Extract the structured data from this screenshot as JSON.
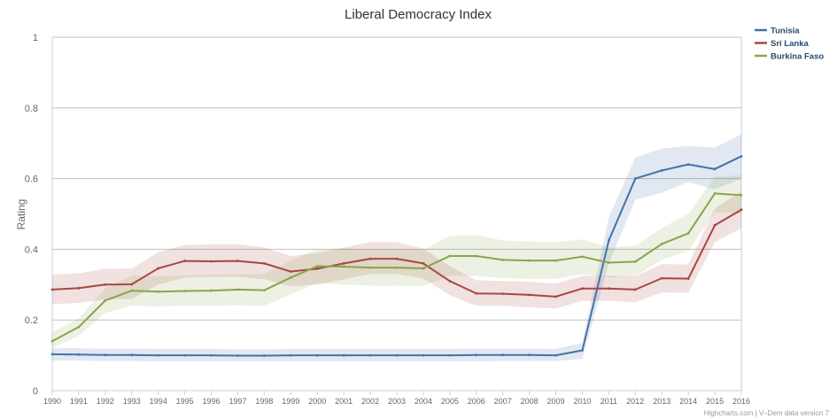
{
  "chart_data": {
    "type": "line",
    "title": "Liberal Democracy Index",
    "xlabel": "",
    "ylabel": "Rating",
    "ylim": [
      0,
      1
    ],
    "yticks": [
      "0",
      "0.2",
      "0.4",
      "0.6",
      "0.8",
      "1"
    ],
    "ytick_values": [
      0,
      0.2,
      0.4,
      0.6,
      0.8,
      1
    ],
    "x": [
      "1990",
      "1991",
      "1992",
      "1993",
      "1994",
      "1995",
      "1996",
      "1997",
      "1998",
      "1999",
      "2000",
      "2001",
      "2002",
      "2003",
      "2004",
      "2005",
      "2006",
      "2007",
      "2008",
      "2009",
      "2010",
      "2011",
      "2012",
      "2013",
      "2014",
      "2015",
      "2016"
    ],
    "grid": true,
    "legend_position": "top-right",
    "series": [
      {
        "name": "Tunisia",
        "color": "#4572a7",
        "values": [
          0.103,
          0.102,
          0.101,
          0.101,
          0.1,
          0.1,
          0.1,
          0.099,
          0.099,
          0.1,
          0.1,
          0.1,
          0.1,
          0.1,
          0.1,
          0.1,
          0.101,
          0.101,
          0.101,
          0.1,
          0.114,
          0.425,
          0.6,
          0.623,
          0.64,
          0.627,
          0.663
        ],
        "low": [
          0.085,
          0.085,
          0.084,
          0.084,
          0.083,
          0.083,
          0.083,
          0.083,
          0.083,
          0.083,
          0.083,
          0.083,
          0.083,
          0.083,
          0.083,
          0.083,
          0.083,
          0.084,
          0.084,
          0.084,
          0.09,
          0.36,
          0.54,
          0.56,
          0.59,
          0.57,
          0.6
        ],
        "high": [
          0.12,
          0.12,
          0.119,
          0.119,
          0.118,
          0.118,
          0.118,
          0.117,
          0.117,
          0.118,
          0.118,
          0.118,
          0.118,
          0.118,
          0.118,
          0.118,
          0.119,
          0.119,
          0.119,
          0.118,
          0.135,
          0.49,
          0.66,
          0.685,
          0.692,
          0.688,
          0.725
        ]
      },
      {
        "name": "Sri Lanka",
        "color": "#aa4643",
        "values": [
          0.286,
          0.29,
          0.3,
          0.301,
          0.346,
          0.367,
          0.366,
          0.367,
          0.36,
          0.337,
          0.345,
          0.36,
          0.373,
          0.373,
          0.36,
          0.31,
          0.275,
          0.274,
          0.271,
          0.266,
          0.289,
          0.289,
          0.286,
          0.318,
          0.317,
          0.468,
          0.512
        ],
        "low": [
          0.245,
          0.248,
          0.258,
          0.26,
          0.3,
          0.32,
          0.322,
          0.322,
          0.315,
          0.295,
          0.3,
          0.315,
          0.33,
          0.33,
          0.318,
          0.27,
          0.24,
          0.24,
          0.236,
          0.232,
          0.254,
          0.254,
          0.25,
          0.278,
          0.277,
          0.42,
          0.46
        ],
        "high": [
          0.328,
          0.332,
          0.345,
          0.346,
          0.392,
          0.412,
          0.414,
          0.414,
          0.405,
          0.381,
          0.39,
          0.405,
          0.42,
          0.42,
          0.402,
          0.352,
          0.312,
          0.31,
          0.308,
          0.303,
          0.325,
          0.325,
          0.323,
          0.358,
          0.357,
          0.515,
          0.565
        ]
      },
      {
        "name": "Burkina Faso",
        "color": "#89a54e",
        "values": [
          0.14,
          0.18,
          0.255,
          0.283,
          0.28,
          0.282,
          0.283,
          0.286,
          0.284,
          0.32,
          0.352,
          0.351,
          0.348,
          0.348,
          0.346,
          0.381,
          0.381,
          0.37,
          0.368,
          0.368,
          0.379,
          0.362,
          0.365,
          0.415,
          0.445,
          0.558,
          0.553
        ],
        "low": [
          0.12,
          0.155,
          0.22,
          0.24,
          0.238,
          0.24,
          0.24,
          0.242,
          0.24,
          0.272,
          0.305,
          0.3,
          0.297,
          0.297,
          0.296,
          0.325,
          0.325,
          0.318,
          0.316,
          0.316,
          0.33,
          0.32,
          0.324,
          0.37,
          0.395,
          0.505,
          0.5
        ],
        "high": [
          0.165,
          0.205,
          0.29,
          0.325,
          0.324,
          0.326,
          0.328,
          0.33,
          0.33,
          0.368,
          0.4,
          0.402,
          0.4,
          0.4,
          0.398,
          0.438,
          0.44,
          0.425,
          0.422,
          0.42,
          0.428,
          0.405,
          0.41,
          0.46,
          0.5,
          0.605,
          0.61
        ]
      }
    ]
  },
  "credits": "Highcharts.com | V–Dem data version 7"
}
